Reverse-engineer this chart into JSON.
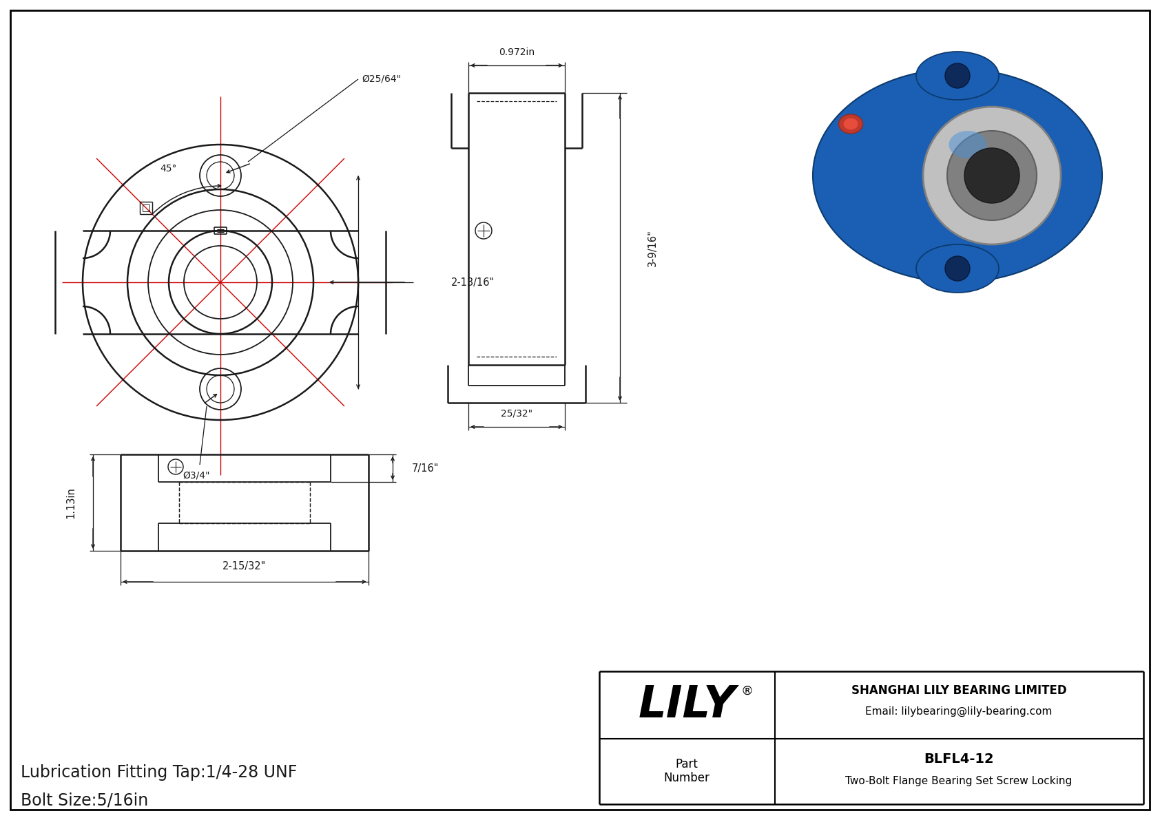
{
  "bg_color": "#ffffff",
  "line_color": "#1a1a1a",
  "dim_color": "#1a1a1a",
  "red_color": "#cc0000",
  "title_line1": "Bolt Size:5/16in",
  "title_line2": "Lubrication Fitting Tap:1/4-28 UNF",
  "title_fontsize": 16,
  "company_name": "SHANGHAI LILY BEARING LIMITED",
  "company_email": "Email: lilybearing@lily-bearing.com",
  "part_label": "Part\nNumber",
  "part_number": "BLFL4-12",
  "part_desc": "Two-Bolt Flange Bearing Set Screw Locking",
  "lily_text": "LILY",
  "dims": {
    "bolt_hole_dia": "Ø25/64\"",
    "angle": "45°",
    "bolt_circle": "2-13/16\"",
    "bolt_dia": "Ø3/4\"",
    "side_width": "0.972in",
    "side_height": "3-9/16\"",
    "side_base": "25/32\"",
    "bottom_height": "1.13in",
    "bottom_width_top": "7/16\"",
    "bottom_width": "2-15/32\""
  }
}
